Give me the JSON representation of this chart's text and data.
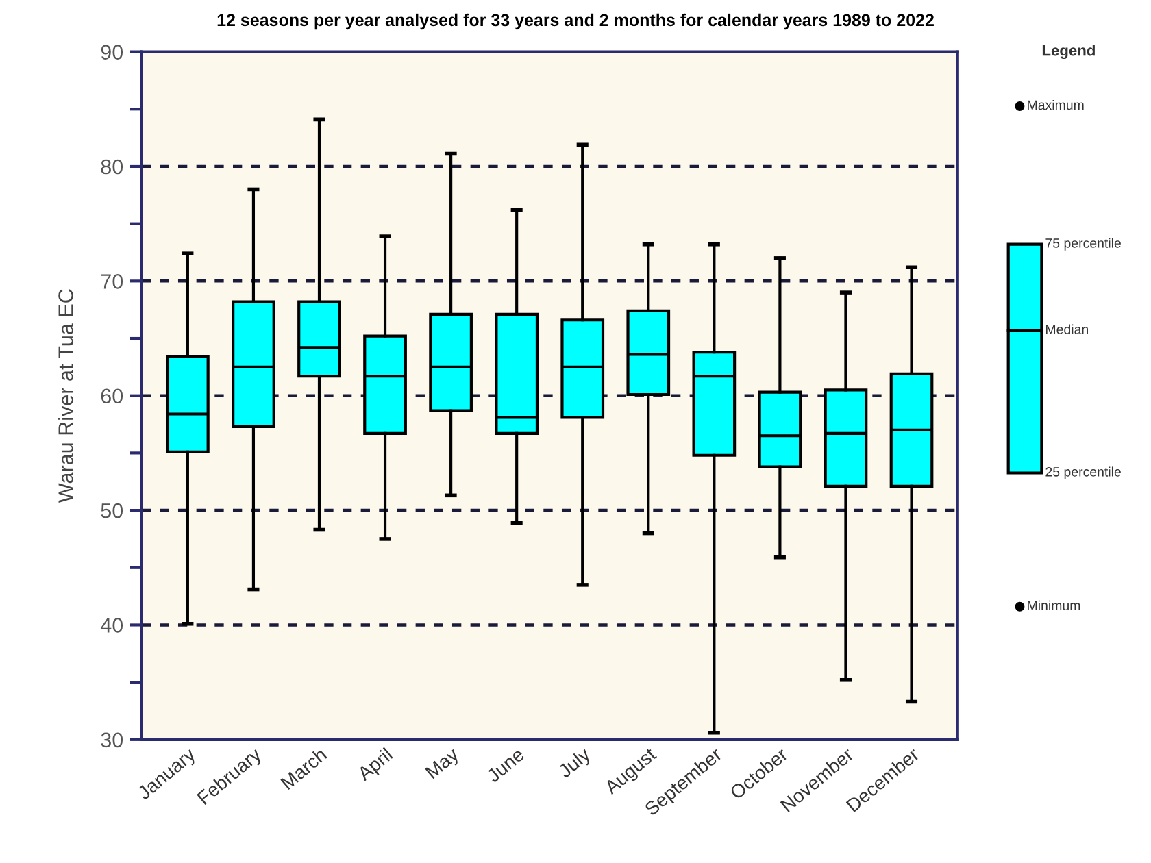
{
  "chart_data": {
    "type": "box",
    "title": "12 seasons per year analysed for 33 years and 2 months for calendar years 1989 to 2022",
    "ylabel": "Warau River at Tua EC",
    "categories": [
      "January",
      "February",
      "March",
      "April",
      "May",
      "June",
      "July",
      "August",
      "September",
      "October",
      "November",
      "December"
    ],
    "color": "#00ffff",
    "boxes": [
      {
        "low": 40.1,
        "q1": 55.1,
        "median": 58.4,
        "q3": 63.4,
        "high": 72.4
      },
      {
        "low": 43.1,
        "q1": 57.3,
        "median": 62.5,
        "q3": 68.2,
        "high": 78.0
      },
      {
        "low": 48.3,
        "q1": 61.7,
        "median": 64.2,
        "q3": 68.2,
        "high": 84.1
      },
      {
        "low": 47.5,
        "q1": 56.7,
        "median": 61.7,
        "q3": 65.2,
        "high": 73.9
      },
      {
        "low": 51.3,
        "q1": 58.7,
        "median": 62.5,
        "q3": 67.1,
        "high": 81.1
      },
      {
        "low": 48.9,
        "q1": 56.7,
        "median": 58.1,
        "q3": 67.1,
        "high": 76.2
      },
      {
        "low": 43.5,
        "q1": 58.1,
        "median": 62.5,
        "q3": 66.6,
        "high": 81.9
      },
      {
        "low": 48.0,
        "q1": 60.1,
        "median": 63.6,
        "q3": 67.4,
        "high": 73.2
      },
      {
        "low": 30.6,
        "q1": 54.8,
        "median": 61.7,
        "q3": 63.8,
        "high": 73.2
      },
      {
        "low": 45.9,
        "q1": 53.8,
        "median": 56.5,
        "q3": 60.3,
        "high": 72.0
      },
      {
        "low": 35.2,
        "q1": 52.1,
        "median": 56.7,
        "q3": 60.5,
        "high": 69.0
      },
      {
        "low": 33.3,
        "q1": 52.1,
        "median": 57.0,
        "q3": 61.9,
        "high": 71.2
      }
    ],
    "ylim": [
      30,
      90
    ],
    "yticks": [
      30,
      {
        "value": 35,
        "label": null
      },
      40,
      {
        "value": 45,
        "label": null
      },
      50,
      {
        "value": 55,
        "label": null
      },
      60,
      {
        "value": 65,
        "label": null
      },
      70,
      {
        "value": 75,
        "label": null
      },
      80,
      {
        "value": 85,
        "label": null
      },
      90
    ],
    "grid": "y",
    "line_style": "dashed",
    "annotations": [
      "Legend",
      "Maximum",
      "75 percentile",
      "Median",
      "25 percentile",
      "Minimum"
    ]
  }
}
